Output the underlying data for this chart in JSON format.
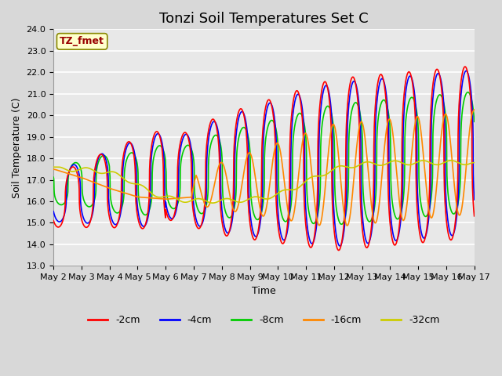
{
  "title": "Tonzi Soil Temperatures Set C",
  "xlabel": "Time",
  "ylabel": "Soil Temperature (C)",
  "ylim": [
    13.0,
    24.0
  ],
  "yticks": [
    13.0,
    14.0,
    15.0,
    16.0,
    17.0,
    18.0,
    19.0,
    20.0,
    21.0,
    22.0,
    23.0,
    24.0
  ],
  "xtick_labels": [
    "May 2",
    "May 3",
    "May 4",
    "May 5",
    "May 6",
    "May 7",
    "May 8",
    "May 9",
    "May 10",
    "May 11",
    "May 12",
    "May 13",
    "May 14",
    "May 15",
    "May 16",
    "May 17"
  ],
  "annotation_text": "TZ_fmet",
  "annotation_color": "#990000",
  "annotation_bg": "#ffffcc",
  "colors": {
    "-2cm": "#ff0000",
    "-4cm": "#0000ff",
    "-8cm": "#00cc00",
    "-16cm": "#ff8800",
    "-32cm": "#cccc00"
  },
  "line_width": 1.2,
  "fig_bg": "#d8d8d8",
  "plot_bg": "#e8e8e8",
  "grid_color": "#ffffff",
  "title_fontsize": 13,
  "label_fontsize": 9,
  "tick_fontsize": 8
}
